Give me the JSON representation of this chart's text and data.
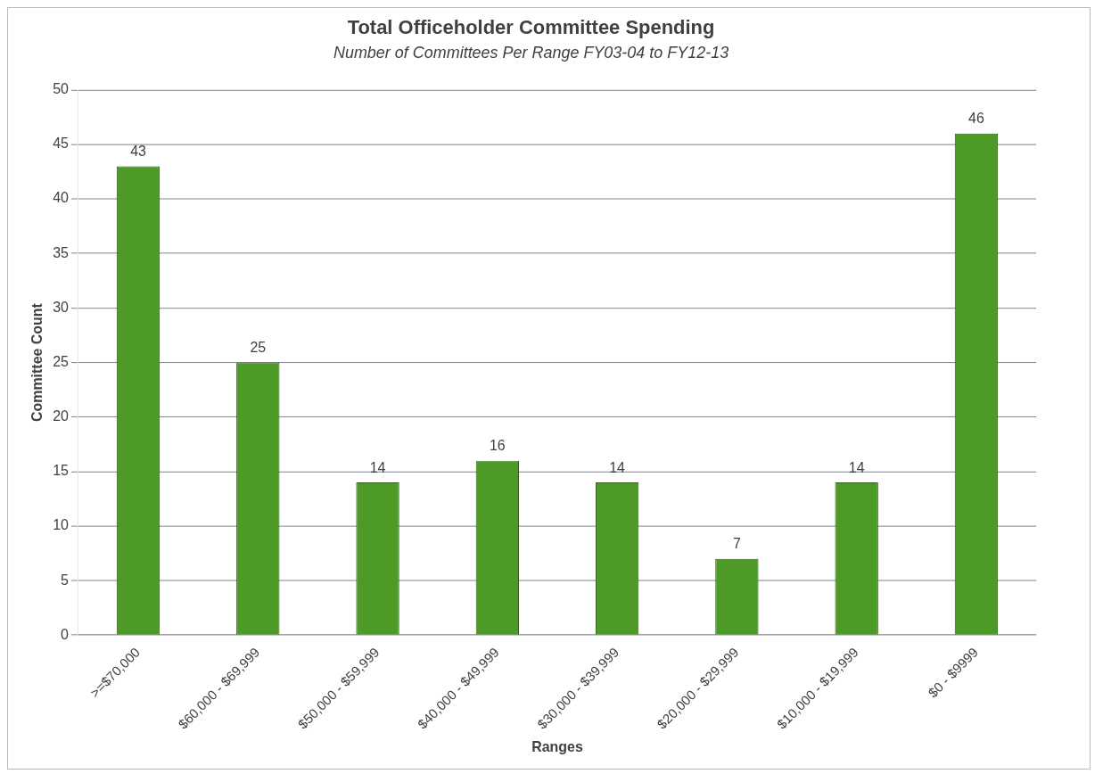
{
  "chart_data": {
    "type": "bar",
    "title": "Total Officeholder Committee Spending",
    "subtitle": "Number of Committees Per Range FY03-04 to FY12-13",
    "xlabel": "Ranges",
    "ylabel": "Committee Count",
    "categories": [
      ">=$70,000",
      "$60,000 - $69,999",
      "$50,000 - $59,999",
      "$40,000 - $49,999",
      "$30,000 - $39,999",
      "$20,000 - $29,999",
      "$10,000 - $19,999",
      "$0 - $9999"
    ],
    "values": [
      43,
      25,
      14,
      16,
      14,
      7,
      14,
      46
    ],
    "color": "#4e9a26",
    "ylim": [
      0,
      50
    ],
    "yticks": [
      0,
      5,
      10,
      15,
      20,
      25,
      30,
      35,
      40,
      45,
      50
    ],
    "grid": "y",
    "data_labels": true,
    "legend": false
  }
}
